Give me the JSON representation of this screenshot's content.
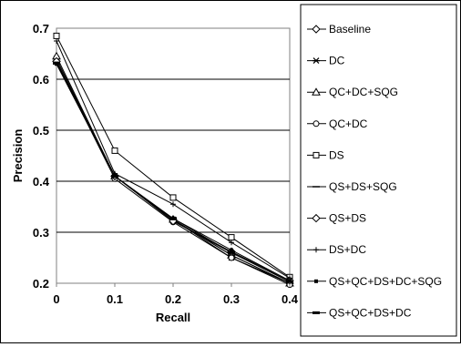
{
  "chart_data": {
    "type": "line",
    "title": "",
    "xlabel": "Recall",
    "ylabel": "Precision",
    "x": [
      0,
      0.1,
      0.2,
      0.3,
      0.4
    ],
    "xticks": [
      "0",
      "0.1",
      "0.2",
      "0.3",
      "0.4"
    ],
    "yticks": [
      "0.2",
      "0.3",
      "0.4",
      "0.5",
      "0.6",
      "0.7"
    ],
    "xlim": [
      0,
      0.4
    ],
    "ylim": [
      0.2,
      0.7
    ],
    "grid": "horizontal",
    "legend_position": "right",
    "series": [
      {
        "name": "Baseline",
        "marker": "diamond",
        "values": [
          0.635,
          0.41,
          0.325,
          0.255,
          0.2
        ]
      },
      {
        "name": "DC",
        "marker": "asterisk",
        "values": [
          0.64,
          0.41,
          0.325,
          0.25,
          0.2
        ]
      },
      {
        "name": "QC+DC+SQG",
        "marker": "triangle",
        "values": [
          0.645,
          0.41,
          0.325,
          0.255,
          0.2
        ]
      },
      {
        "name": "QC+DC",
        "marker": "circle",
        "values": [
          0.635,
          0.405,
          0.32,
          0.25,
          0.197
        ]
      },
      {
        "name": "DS",
        "marker": "square",
        "values": [
          0.685,
          0.46,
          0.368,
          0.29,
          0.212
        ]
      },
      {
        "name": "QS+DS+SQG",
        "marker": "dash",
        "values": [
          0.63,
          0.41,
          0.322,
          0.26,
          0.203
        ]
      },
      {
        "name": "QS+DS",
        "marker": "diamond",
        "values": [
          0.635,
          0.41,
          0.322,
          0.262,
          0.205
        ]
      },
      {
        "name": "DS+DC",
        "marker": "plus",
        "values": [
          0.675,
          0.415,
          0.355,
          0.28,
          0.21
        ]
      },
      {
        "name": "QS+QC+DS+DC+SQG",
        "marker": "square-small",
        "values": [
          0.63,
          0.41,
          0.327,
          0.265,
          0.205
        ]
      },
      {
        "name": "QS+QC+DS+DC",
        "marker": "dash-bold",
        "values": [
          0.632,
          0.41,
          0.327,
          0.26,
          0.203
        ]
      }
    ]
  }
}
